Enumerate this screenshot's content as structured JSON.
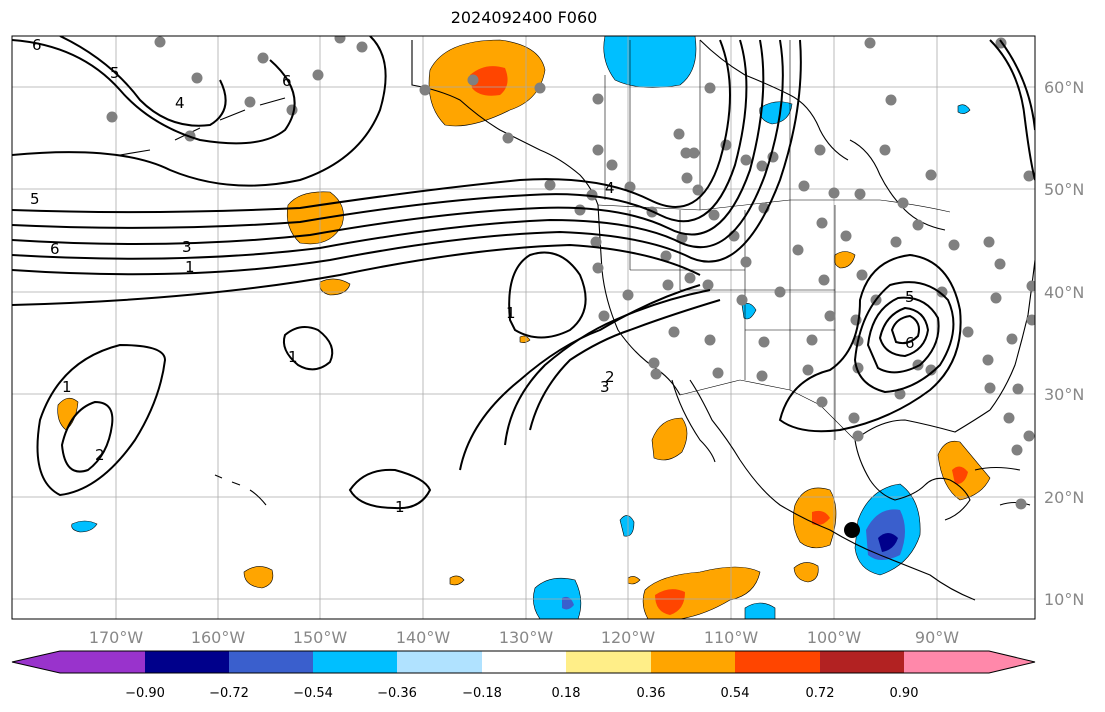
{
  "title": "2024092400 F060",
  "lon_labels": [
    "170°W",
    "160°W",
    "150°W",
    "140°W",
    "130°W",
    "120°W",
    "110°W",
    "100°W",
    "90°W"
  ],
  "lat_labels": [
    "60°N",
    "50°N",
    "40°N",
    "30°N",
    "20°N",
    "10°N"
  ],
  "colorbar": {
    "ticks": [
      "−0.90",
      "−0.72",
      "−0.54",
      "−0.36",
      "−0.18",
      "0.18",
      "0.36",
      "0.54",
      "0.72",
      "0.90"
    ],
    "colors": [
      "#9933cc",
      "#00008b",
      "#3a5fcd",
      "#00bfff",
      "#b0e2ff",
      "#ffffff",
      "#ffee88",
      "#ffa500",
      "#ff4500",
      "#b22222",
      "#ff88aa"
    ]
  },
  "contour_labels": [
    "6",
    "5",
    "4",
    "6",
    "5",
    "3",
    "1",
    "6",
    "4",
    "1",
    "2",
    "3",
    "1",
    "2",
    "1",
    "5",
    "6",
    "1"
  ],
  "colors": {
    "land_line": "#000000",
    "grid": "#aaaaaa",
    "station": "#808080",
    "marker": "#000000"
  }
}
